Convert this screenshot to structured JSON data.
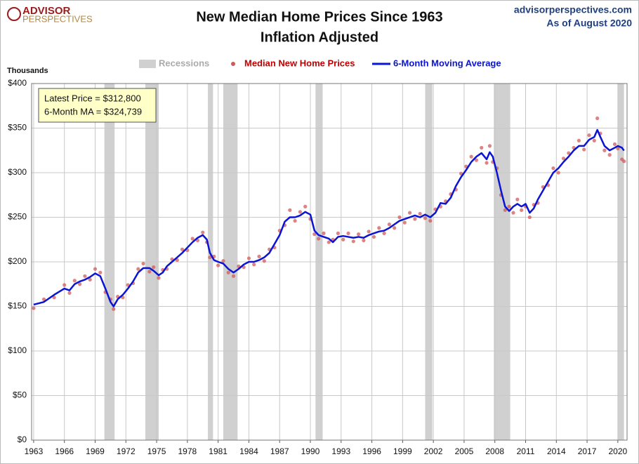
{
  "chart_data": {
    "type": "line",
    "title": "New Median Home Prices Since 1963",
    "subtitle": "Inflation Adjusted",
    "logo": [
      "ADVISOR",
      "PERSPECTIVES"
    ],
    "source": "advisorperspectives.com",
    "date_note": "As of August 2020",
    "ylabel": "Thousands",
    "annotations": [
      "Latest Price = $312,800",
      "6-Month MA = $324,739"
    ],
    "recessions_label": "Recessions",
    "recessions_color": "#d0d0d0",
    "recessions": [
      [
        1969.9,
        1970.9
      ],
      [
        1973.9,
        1975.2
      ],
      [
        1980.0,
        1980.5
      ],
      [
        1981.5,
        1982.9
      ],
      [
        1990.5,
        1991.2
      ],
      [
        2001.2,
        2001.9
      ],
      [
        2007.9,
        2009.5
      ],
      [
        2020.0,
        2020.6
      ]
    ],
    "xlim": [
      1962.8,
      2020.9
    ],
    "xticks": [
      1963,
      1966,
      1969,
      1972,
      1975,
      1978,
      1981,
      1984,
      1987,
      1990,
      1993,
      1996,
      1999,
      2002,
      2005,
      2008,
      2011,
      2014,
      2017,
      2020
    ],
    "ylim": [
      0,
      400
    ],
    "yticks": [
      {
        "value": 0,
        "label": "$0"
      },
      {
        "value": 50,
        "label": "$50"
      },
      {
        "value": 100,
        "label": "$100"
      },
      {
        "value": 150,
        "label": "$150"
      },
      {
        "value": 200,
        "label": "$200"
      },
      {
        "value": 250,
        "label": "$250"
      },
      {
        "value": 300,
        "label": "$300"
      },
      {
        "value": 350,
        "label": "$350"
      },
      {
        "value": 400,
        "label": "$400"
      }
    ],
    "grid": true,
    "x": [
      1963.0,
      1964,
      1965,
      1966,
      1966.5,
      1967,
      1967.5,
      1968,
      1968.5,
      1969,
      1969.5,
      1970,
      1970.5,
      1970.8,
      1971.2,
      1971.7,
      1972.2,
      1972.7,
      1973.2,
      1973.7,
      1974.3,
      1974.7,
      1975.2,
      1975.6,
      1976,
      1976.5,
      1977,
      1977.5,
      1978,
      1978.5,
      1979,
      1979.5,
      1979.9,
      1980.2,
      1980.6,
      1981,
      1981.5,
      1982,
      1982.5,
      1983,
      1983.5,
      1984,
      1984.5,
      1985,
      1985.5,
      1986,
      1986.5,
      1987,
      1987.5,
      1988,
      1988.5,
      1989,
      1989.5,
      1990,
      1990.4,
      1990.8,
      1991.3,
      1991.8,
      1992.2,
      1992.7,
      1993.2,
      1993.7,
      1994.2,
      1994.7,
      1995.2,
      1995.7,
      1996.2,
      1996.7,
      1997.2,
      1997.7,
      1998.2,
      1998.7,
      1999.2,
      1999.7,
      2000.2,
      2000.7,
      2001.2,
      2001.7,
      2002.2,
      2002.7,
      2003.2,
      2003.7,
      2004.2,
      2004.7,
      2005.2,
      2005.7,
      2006.2,
      2006.7,
      2007.2,
      2007.5,
      2007.8,
      2008.2,
      2008.6,
      2009.0,
      2009.4,
      2009.8,
      2010.2,
      2010.6,
      2011.0,
      2011.4,
      2011.8,
      2012.2,
      2012.7,
      2013.2,
      2013.7,
      2014.2,
      2014.7,
      2015.2,
      2015.7,
      2016.2,
      2016.7,
      2017.2,
      2017.7,
      2018.0,
      2018.3,
      2018.7,
      2019.2,
      2019.7,
      2020.0,
      2020.4,
      2020.6
    ],
    "series": [
      {
        "name": "Median New Home Prices",
        "color": "#d05a5a",
        "kind": "scatter",
        "values": [
          148,
          158,
          160,
          174,
          165,
          179,
          175,
          184,
          180,
          192,
          188,
          166,
          158,
          147,
          161,
          160,
          174,
          176,
          192,
          198,
          189,
          194,
          182,
          191,
          192,
          203,
          202,
          214,
          213,
          226,
          224,
          233,
          222,
          205,
          206,
          196,
          201,
          188,
          184,
          195,
          194,
          204,
          197,
          206,
          201,
          214,
          216,
          235,
          241,
          258,
          246,
          256,
          262,
          248,
          231,
          226,
          232,
          222,
          225,
          232,
          225,
          232,
          223,
          231,
          224,
          234,
          228,
          238,
          232,
          242,
          238,
          250,
          244,
          255,
          248,
          254,
          249,
          246,
          259,
          262,
          268,
          276,
          281,
          299,
          307,
          318,
          314,
          328,
          311,
          330,
          312,
          305,
          275,
          258,
          262,
          255,
          270,
          258,
          262,
          250,
          264,
          266,
          284,
          286,
          305,
          300,
          316,
          322,
          328,
          336,
          326,
          342,
          336,
          361,
          344,
          325,
          320,
          332,
          327,
          315,
          312.8
        ]
      },
      {
        "name": "6-Month Moving Average",
        "color": "#0a14d2",
        "kind": "line",
        "values": [
          152,
          155,
          163,
          170,
          168,
          175,
          178,
          180,
          183,
          187,
          184,
          170,
          155,
          150,
          158,
          163,
          170,
          178,
          188,
          193,
          193,
          190,
          185,
          188,
          195,
          200,
          205,
          210,
          216,
          222,
          227,
          230,
          225,
          210,
          202,
          200,
          198,
          192,
          188,
          192,
          197,
          200,
          200,
          202,
          205,
          210,
          220,
          230,
          245,
          250,
          250,
          252,
          256,
          253,
          235,
          230,
          228,
          226,
          222,
          228,
          229,
          228,
          227,
          228,
          227,
          230,
          232,
          234,
          235,
          238,
          242,
          246,
          248,
          250,
          252,
          250,
          253,
          250,
          255,
          266,
          265,
          272,
          285,
          295,
          303,
          312,
          318,
          322,
          315,
          323,
          318,
          300,
          280,
          262,
          257,
          262,
          265,
          262,
          265,
          255,
          260,
          270,
          280,
          290,
          300,
          305,
          312,
          318,
          325,
          330,
          330,
          337,
          340,
          348,
          340,
          330,
          325,
          328,
          330,
          328,
          324.739
        ]
      }
    ]
  }
}
